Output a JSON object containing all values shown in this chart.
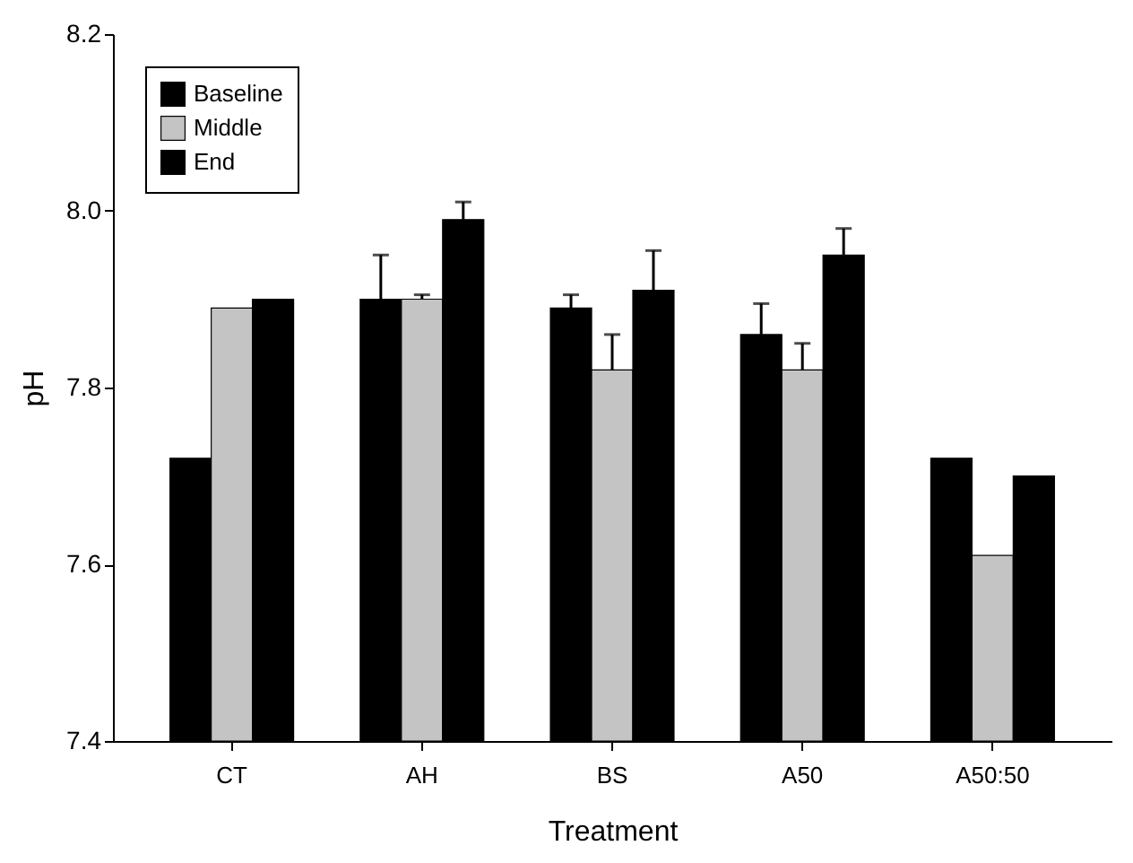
{
  "chart_data": {
    "type": "bar",
    "xlabel": "Treatment",
    "ylabel": "pH",
    "categories": [
      "CT",
      "AH",
      "BS",
      "A50",
      "A50:50"
    ],
    "series": [
      {
        "name": "Baseline",
        "color": "#000000",
        "values": [
          7.72,
          7.9,
          7.89,
          7.86,
          7.72
        ],
        "errors": [
          null,
          0.05,
          0.015,
          0.035,
          null
        ]
      },
      {
        "name": "Middle",
        "color": "#c4c4c4",
        "values": [
          7.89,
          7.9,
          7.82,
          7.82,
          7.61
        ],
        "errors": [
          null,
          0.005,
          0.04,
          0.03,
          null
        ]
      },
      {
        "name": "End",
        "color": "#000000",
        "values": [
          7.9,
          7.99,
          7.91,
          7.95,
          7.7
        ],
        "errors": [
          null,
          0.02,
          0.045,
          0.03,
          null
        ]
      }
    ],
    "ylim": [
      7.4,
      8.2
    ],
    "yticks": [
      7.4,
      7.6,
      7.8,
      {
        "value": 8,
        "label": "8.0"
      },
      8.2
    ],
    "legend": "top left",
    "grid": false
  }
}
